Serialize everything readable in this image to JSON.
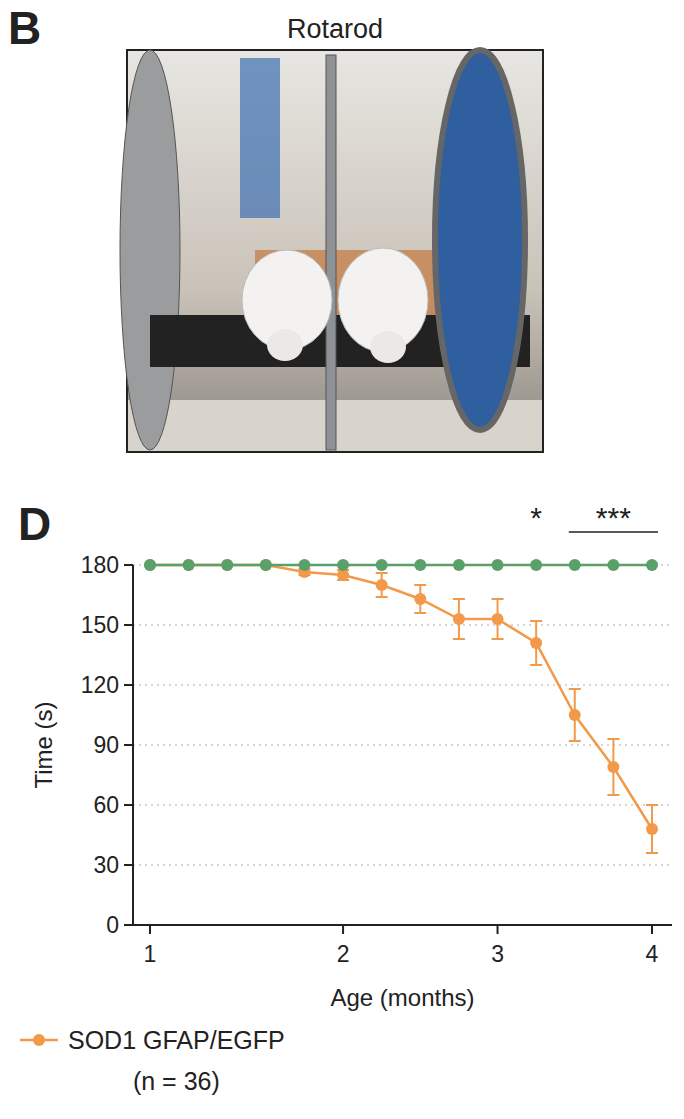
{
  "chart_data": {
    "type": "line",
    "photo_panel_label": "B",
    "photo_title": "Rotarod",
    "panel_label": "D",
    "x_label": "Age (months)",
    "y_label": "Time (s)",
    "categories": [
      "1",
      null,
      null,
      null,
      null,
      "2",
      null,
      null,
      null,
      "3",
      null,
      null,
      null,
      "4"
    ],
    "ylim": [
      0,
      180
    ],
    "yticks": [
      0,
      30,
      60,
      90,
      120,
      150,
      180
    ],
    "grid": true,
    "marker": "circle",
    "legend": "bottom-left",
    "series": [
      {
        "name": "SOD1 GFAP/EGFP (n = 36)",
        "color": "#f2994a",
        "values": [
          180,
          180,
          180,
          180,
          176.5,
          175,
          170,
          163,
          153,
          153,
          141,
          105,
          79,
          48
        ],
        "errors": [
          0,
          0,
          0,
          0,
          1.5,
          2.5,
          6,
          7,
          10,
          10,
          11,
          13,
          14,
          12
        ]
      },
      {
        "color": "#5aa06a",
        "values": [
          180,
          180,
          180,
          180,
          180,
          180,
          180,
          180,
          180,
          180,
          180,
          180,
          180,
          180
        ]
      }
    ],
    "annotations": [
      {
        "text": "*",
        "start": 10,
        "end": 10
      },
      {
        "text": "***",
        "start": 11,
        "end": 13
      }
    ]
  }
}
